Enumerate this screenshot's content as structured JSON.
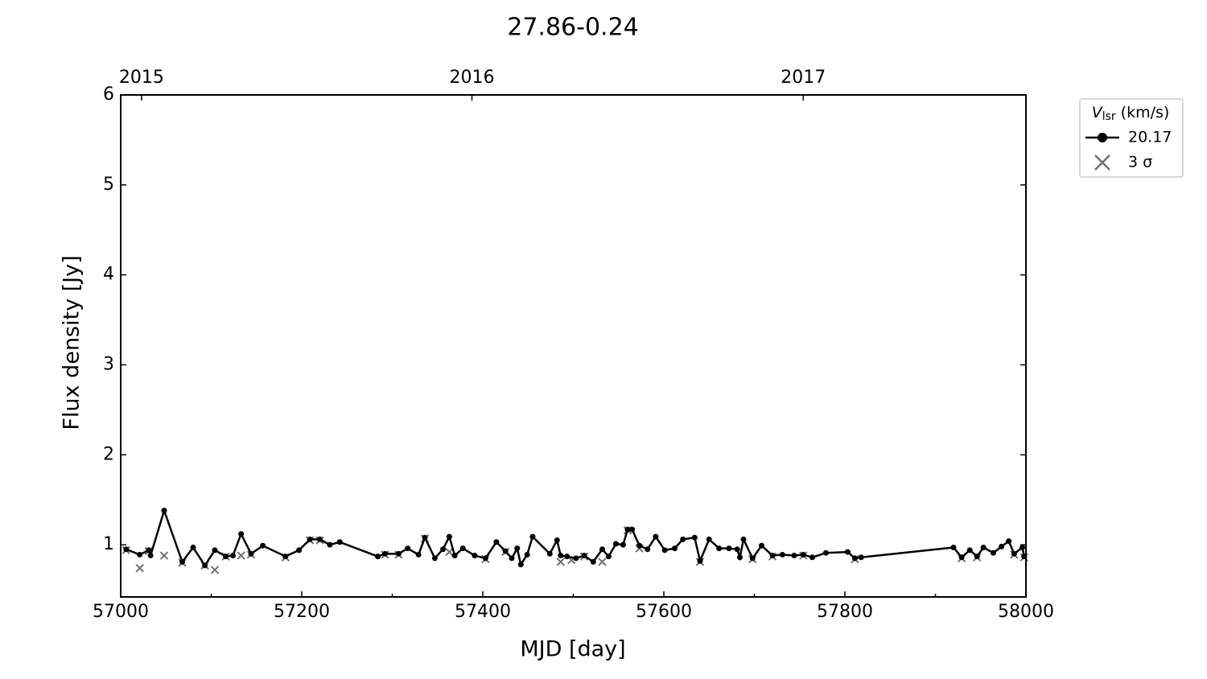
{
  "chart_data": {
    "type": "line",
    "title": "27.86-0.24",
    "xlabel": "MJD [day]",
    "ylabel": "Flux density [Jy]",
    "xlim": [
      57000,
      58000
    ],
    "xticks": [
      57000,
      57200,
      57400,
      57600,
      57800,
      58000
    ],
    "ylim": [
      0.42,
      6
    ],
    "yticks": [
      1,
      2,
      3,
      4,
      5,
      6
    ],
    "x2ticks": [
      {
        "value": 57023,
        "label": "2015"
      },
      {
        "value": 57388,
        "label": "2016"
      },
      {
        "value": 57754,
        "label": "2017"
      }
    ],
    "legend_title": {
      "main": "V",
      "sub": "lsr",
      "rest": "(km/s)"
    },
    "legend_position": "outside-upper-right",
    "series": [
      {
        "name": "20.17",
        "color": "#000000",
        "marker": "o",
        "line": true,
        "x": [
          57006,
          57021,
          57031,
          57033,
          57048,
          57068,
          57080,
          57093,
          57104,
          57116,
          57124,
          57133,
          57144,
          57157,
          57182,
          57197,
          57209,
          57220,
          57231,
          57242,
          57284,
          57292,
          57307,
          57317,
          57329,
          57336,
          57347,
          57356,
          57363,
          57369,
          57378,
          57391,
          57403,
          57415,
          57425,
          57432,
          57438,
          57442,
          57449,
          57455,
          57474,
          57482,
          57486,
          57493,
          57503,
          57512,
          57522,
          57532,
          57539,
          57547,
          57555,
          57560,
          57565,
          57573,
          57582,
          57591,
          57601,
          57612,
          57621,
          57634,
          57640,
          57650,
          57661,
          57672,
          57681,
          57684,
          57688,
          57698,
          57708,
          57720,
          57731,
          57744,
          57754,
          57764,
          57779,
          57803,
          57811,
          57818,
          57920,
          57929,
          57938,
          57946,
          57953,
          57964,
          57973,
          57981,
          57987,
          57996,
          57998
        ],
        "values": [
          0.95,
          0.89,
          0.94,
          0.88,
          1.38,
          0.81,
          0.97,
          0.77,
          0.94,
          0.87,
          0.88,
          1.12,
          0.9,
          0.99,
          0.87,
          0.94,
          1.06,
          1.06,
          1.0,
          1.03,
          0.87,
          0.9,
          0.9,
          0.96,
          0.89,
          1.08,
          0.85,
          0.95,
          1.09,
          0.88,
          0.96,
          0.88,
          0.85,
          1.03,
          0.93,
          0.85,
          0.96,
          0.78,
          0.89,
          1.09,
          0.9,
          1.05,
          0.88,
          0.87,
          0.85,
          0.88,
          0.81,
          0.95,
          0.87,
          1.01,
          1.0,
          1.17,
          1.17,
          0.99,
          0.95,
          1.09,
          0.94,
          0.96,
          1.06,
          1.08,
          0.82,
          1.06,
          0.96,
          0.96,
          0.95,
          0.86,
          1.06,
          0.85,
          0.99,
          0.88,
          0.89,
          0.88,
          0.89,
          0.86,
          0.91,
          0.92,
          0.85,
          0.86,
          0.97,
          0.86,
          0.94,
          0.87,
          0.97,
          0.91,
          0.98,
          1.04,
          0.9,
          0.97,
          0.87
        ]
      },
      {
        "name": "3 σ",
        "color": "#707070",
        "marker": "x",
        "line": false,
        "x": [
          57006,
          57021,
          57031,
          57048,
          57068,
          57093,
          57104,
          57116,
          57133,
          57144,
          57182,
          57209,
          57220,
          57292,
          57307,
          57336,
          57363,
          57403,
          57425,
          57486,
          57498,
          57512,
          57532,
          57560,
          57573,
          57640,
          57698,
          57720,
          57754,
          57811,
          57929,
          57946,
          57987,
          57998
        ],
        "values": [
          0.94,
          0.74,
          0.93,
          0.88,
          0.8,
          0.77,
          0.72,
          0.87,
          0.88,
          0.89,
          0.86,
          1.05,
          1.05,
          0.89,
          0.89,
          1.07,
          0.92,
          0.84,
          0.92,
          0.81,
          0.83,
          0.87,
          0.81,
          1.16,
          0.96,
          0.81,
          0.84,
          0.87,
          0.88,
          0.84,
          0.85,
          0.86,
          0.89,
          0.86
        ]
      }
    ]
  }
}
